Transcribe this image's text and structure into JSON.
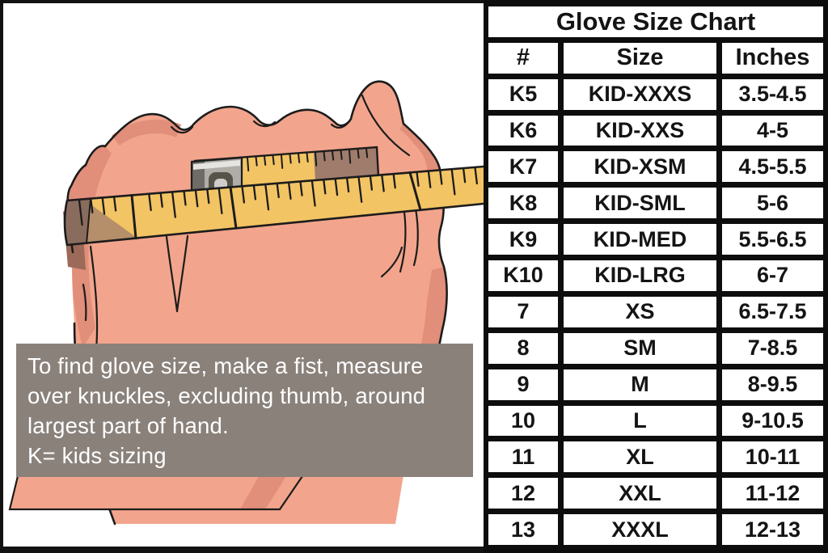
{
  "chart_data": {
    "type": "table",
    "title": "Glove Size Chart",
    "columns": [
      "#",
      "Size",
      "Inches"
    ],
    "rows": [
      [
        "K5",
        "KID-XXXS",
        "3.5-4.5"
      ],
      [
        "K6",
        "KID-XXS",
        "4-5"
      ],
      [
        "K7",
        "KID-XSM",
        "4.5-5.5"
      ],
      [
        "K8",
        "KID-SML",
        "5-6"
      ],
      [
        "K9",
        "KID-MED",
        "5.5-6.5"
      ],
      [
        "K10",
        "KID-LRG",
        "6-7"
      ],
      [
        "7",
        "XS",
        "6.5-7.5"
      ],
      [
        "8",
        "SM",
        "7-8.5"
      ],
      [
        "9",
        "M",
        "8-9.5"
      ],
      [
        "10",
        "L",
        "9-10.5"
      ],
      [
        "11",
        "XL",
        "10-11"
      ],
      [
        "12",
        "XXL",
        "11-12"
      ],
      [
        "13",
        "XXXL",
        "12-13"
      ]
    ]
  },
  "note": {
    "lines": [
      "To find glove size, make a fist, measure",
      "over knuckles, excluding thumb, around",
      "largest part of hand.",
      "K= kids sizing"
    ]
  },
  "illustration": {
    "description": "fist-with-measuring-tape-around-knuckles",
    "colors": {
      "skin": "#f2a58c",
      "skin_shadow": "#e18e7a",
      "skin_dark": "#9b6a59",
      "tape": "#f2c464",
      "tape_dark": "#8a6c5e",
      "tape_brown": "#a07c6c",
      "clip": "#b0ada8",
      "outline": "#1c1c1c",
      "note_bg": "#8a817b",
      "note_text": "#ffffff",
      "table_bg": "#0d0d0d",
      "cell_bg": "#ffffff",
      "cell_text": "#141414"
    }
  }
}
